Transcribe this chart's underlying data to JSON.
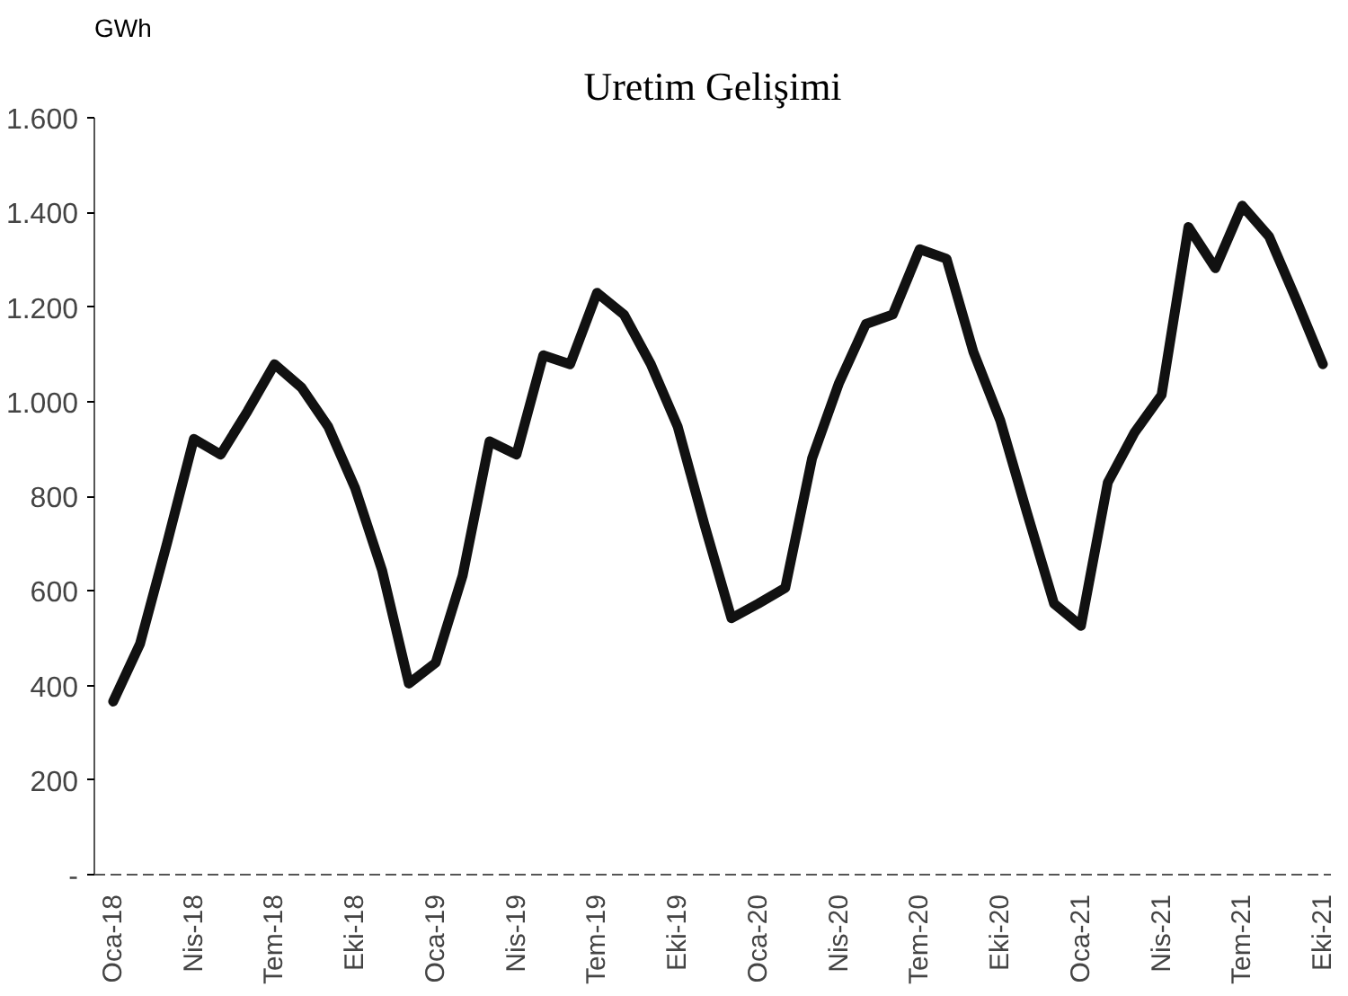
{
  "chart_data": {
    "type": "line",
    "title": "Uretim Gelişimi",
    "ylabel": "GWh",
    "categories": [
      "Oca-18",
      null,
      null,
      "Nis-18",
      null,
      null,
      "Tem-18",
      null,
      null,
      "Eki-18",
      null,
      null,
      "Oca-19",
      null,
      null,
      "Nis-19",
      null,
      null,
      "Tem-19",
      null,
      null,
      "Eki-19",
      null,
      null,
      "Oca-20",
      null,
      null,
      "Nis-20",
      null,
      null,
      "Tem-20",
      null,
      null,
      "Eki-20",
      null,
      null,
      "Oca-21",
      null,
      null,
      "Nis-21",
      null,
      null,
      "Tem-21",
      null,
      null,
      "Eki-21"
    ],
    "series": [
      {
        "color": "#111111",
        "values": [
          366,
          488,
          700,
          921,
          888,
          980,
          1079,
          1030,
          947,
          817,
          644,
          404,
          448,
          632,
          916,
          888,
          1098,
          1079,
          1230,
          1184,
          1079,
          947,
          739,
          542,
          573,
          606,
          880,
          1039,
          1164,
          1184,
          1322,
          1302,
          1105,
          960,
          764,
          573,
          526,
          829,
          935,
          1014,
          1369,
          1282,
          1414,
          1349,
          1217,
          1079
        ]
      }
    ],
    "ylim": [
      0,
      1600
    ],
    "yticks": [
      {
        "value": 0,
        "label": "-"
      },
      200,
      400,
      600,
      800,
      {
        "value": 1000,
        "label": "1.000"
      },
      {
        "value": 1200,
        "label": "1.200"
      },
      {
        "value": 1400,
        "label": "1.400"
      },
      {
        "value": 1600,
        "label": "1.600"
      }
    ],
    "grid": false,
    "marker": "none",
    "line_style": "solid"
  }
}
